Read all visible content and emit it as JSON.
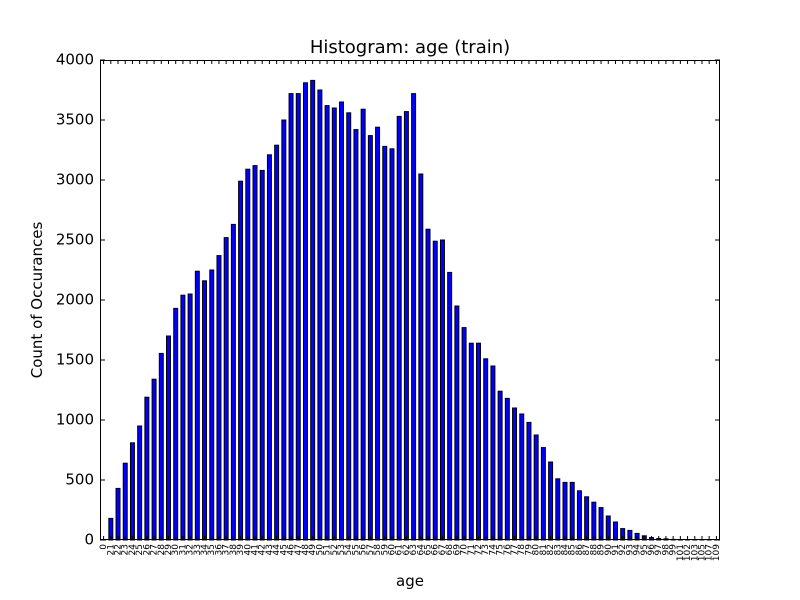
{
  "chart_data": {
    "type": "bar",
    "title": "Histogram: age (train)",
    "xlabel": "age",
    "ylabel": "Count of Occurances",
    "ylim": [
      0,
      4000
    ],
    "yticks": [
      "0",
      "500",
      "1000",
      "1500",
      "2000",
      "2500",
      "3000",
      "3500",
      "4000"
    ],
    "grid": false,
    "colors": {
      "bar_fill": "#0000ff",
      "bar_edge": "#000000"
    },
    "categories": [
      "0",
      "21",
      "22",
      "23",
      "24",
      "25",
      "26",
      "27",
      "28",
      "29",
      "30",
      "31",
      "32",
      "33",
      "34",
      "35",
      "36",
      "37",
      "38",
      "39",
      "40",
      "41",
      "42",
      "43",
      "44",
      "45",
      "46",
      "47",
      "48",
      "49",
      "50",
      "51",
      "52",
      "53",
      "54",
      "55",
      "56",
      "57",
      "58",
      "59",
      "60",
      "61",
      "62",
      "63",
      "64",
      "65",
      "66",
      "67",
      "68",
      "69",
      "70",
      "71",
      "72",
      "73",
      "74",
      "75",
      "76",
      "77",
      "78",
      "79",
      "80",
      "81",
      "82",
      "83",
      "84",
      "85",
      "86",
      "87",
      "88",
      "89",
      "90",
      "91",
      "92",
      "93",
      "94",
      "95",
      "96",
      "97",
      "98",
      "99",
      "101",
      "102",
      "103",
      "105",
      "107",
      "109"
    ],
    "values": [
      3,
      180,
      430,
      640,
      810,
      950,
      1190,
      1340,
      1555,
      1700,
      1930,
      2040,
      2050,
      2240,
      2160,
      2250,
      2370,
      2520,
      2630,
      2990,
      3090,
      3120,
      3080,
      3210,
      3290,
      3500,
      3720,
      3720,
      3810,
      3830,
      3750,
      3620,
      3600,
      3650,
      3560,
      3420,
      3590,
      3370,
      3440,
      3280,
      3260,
      3530,
      3570,
      3720,
      3050,
      2590,
      2490,
      2500,
      2230,
      1950,
      1770,
      1640,
      1640,
      1510,
      1450,
      1240,
      1180,
      1100,
      1050,
      980,
      875,
      770,
      650,
      510,
      480,
      480,
      410,
      360,
      315,
      270,
      200,
      150,
      95,
      80,
      55,
      35,
      20,
      12,
      10,
      5,
      3,
      2,
      1,
      1,
      1,
      1
    ]
  }
}
